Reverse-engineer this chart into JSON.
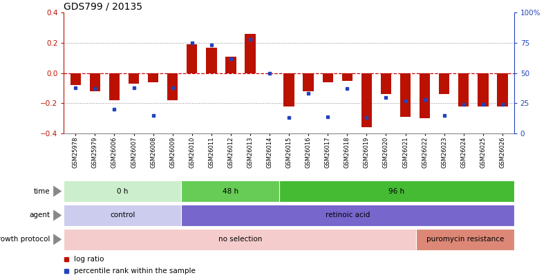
{
  "title": "GDS799 / 20135",
  "samples": [
    "GSM25978",
    "GSM25979",
    "GSM26006",
    "GSM26007",
    "GSM26008",
    "GSM26009",
    "GSM26010",
    "GSM26011",
    "GSM26012",
    "GSM26013",
    "GSM26014",
    "GSM26015",
    "GSM26016",
    "GSM26017",
    "GSM26018",
    "GSM26019",
    "GSM26020",
    "GSM26021",
    "GSM26022",
    "GSM26023",
    "GSM26024",
    "GSM26025",
    "GSM26026"
  ],
  "log_ratio": [
    -0.08,
    -0.12,
    -0.18,
    -0.07,
    -0.06,
    -0.18,
    0.19,
    0.17,
    0.11,
    0.26,
    0.0,
    -0.22,
    -0.12,
    -0.06,
    -0.05,
    -0.36,
    -0.14,
    -0.29,
    -0.3,
    -0.14,
    -0.22,
    -0.22,
    -0.22
  ],
  "percentile": [
    38,
    37,
    20,
    38,
    15,
    38,
    75,
    73,
    62,
    78,
    50,
    13,
    33,
    14,
    37,
    13,
    30,
    27,
    28,
    15,
    24,
    24,
    24
  ],
  "ylim": [
    -0.4,
    0.4
  ],
  "yticks_left": [
    -0.4,
    -0.2,
    0.0,
    0.2,
    0.4
  ],
  "yticks_right": [
    0,
    25,
    50,
    75,
    100
  ],
  "bar_color": "#bb1100",
  "dot_color": "#2244bb",
  "zero_line_color": "#cc0000",
  "dotted_line_color": "#888888",
  "time_groups": [
    {
      "label": "0 h",
      "start": 0,
      "end": 6,
      "color": "#cceecc"
    },
    {
      "label": "48 h",
      "start": 6,
      "end": 11,
      "color": "#66cc55"
    },
    {
      "label": "96 h",
      "start": 11,
      "end": 23,
      "color": "#44bb33"
    }
  ],
  "agent_groups": [
    {
      "label": "control",
      "start": 0,
      "end": 6,
      "color": "#ccccee"
    },
    {
      "label": "retinoic acid",
      "start": 6,
      "end": 23,
      "color": "#7766cc"
    }
  ],
  "growth_groups": [
    {
      "label": "no selection",
      "start": 0,
      "end": 18,
      "color": "#f5cccc"
    },
    {
      "label": "puromycin resistance",
      "start": 18,
      "end": 23,
      "color": "#dd8877"
    }
  ],
  "legend_items": [
    {
      "label": "log ratio",
      "color": "#bb1100"
    },
    {
      "label": "percentile rank within the sample",
      "color": "#2244bb"
    }
  ],
  "background_color": "#ffffff"
}
